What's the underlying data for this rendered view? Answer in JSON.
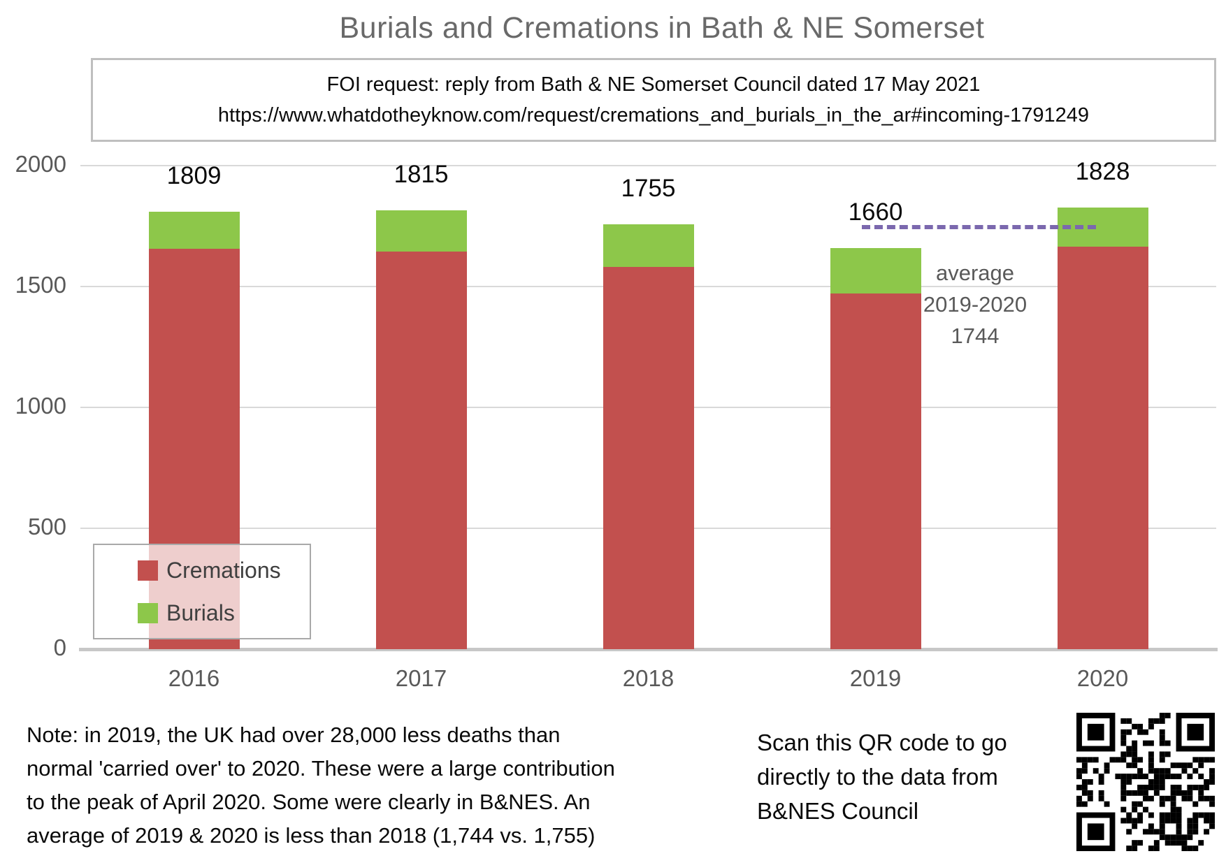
{
  "title": "Burials and Cremations in Bath & NE Somerset",
  "source_box": {
    "line1": "FOI request: reply from Bath & NE Somerset Council dated 17 May 2021",
    "line2": "https://www.whatdotheyknow.com/request/cremations_and_burials_in_the_ar#incoming-1791249"
  },
  "chart_data": {
    "type": "bar",
    "stacked": true,
    "title": "Burials and Cremations in Bath & NE Somerset",
    "categories": [
      "2016",
      "2017",
      "2018",
      "2019",
      "2020"
    ],
    "series": [
      {
        "name": "Cremations",
        "color": "#c2504e",
        "values": [
          1655,
          1645,
          1580,
          1472,
          1665
        ]
      },
      {
        "name": "Burials",
        "color": "#8dc74a",
        "values": [
          154,
          170,
          175,
          188,
          163
        ]
      }
    ],
    "totals": [
      "1809",
      "1815",
      "1755",
      "1660",
      "1828"
    ],
    "ylim": [
      0,
      2000
    ],
    "yticks": [
      "0",
      "500",
      "1000",
      "1500",
      "2000"
    ],
    "grid": true,
    "legend_position": "inside-bottom-left",
    "average_line": {
      "value": 1744,
      "color": "#7b68ae",
      "label_lines": [
        "average",
        "2019-2020",
        "1744"
      ]
    }
  },
  "colors": {
    "cremations": "#c2504e",
    "burials": "#8dc74a",
    "average_dash": "#7b68ae",
    "grid": "#d9d9d9",
    "axis_text": "#595959",
    "title_text": "#696969"
  },
  "note": {
    "lines": [
      "Note: in 2019, the UK had over 28,000 less deaths than",
      "normal 'carried over' to 2020. These were a large contribution",
      "to the peak of April 2020. Some were clearly in B&NES. An",
      "average of 2019 & 2020 is less than 2018 (1,744 vs. 1,755)"
    ]
  },
  "qr": {
    "caption_lines": [
      "Scan this QR code to go",
      "directly to the data from",
      "B&NES Council"
    ]
  }
}
